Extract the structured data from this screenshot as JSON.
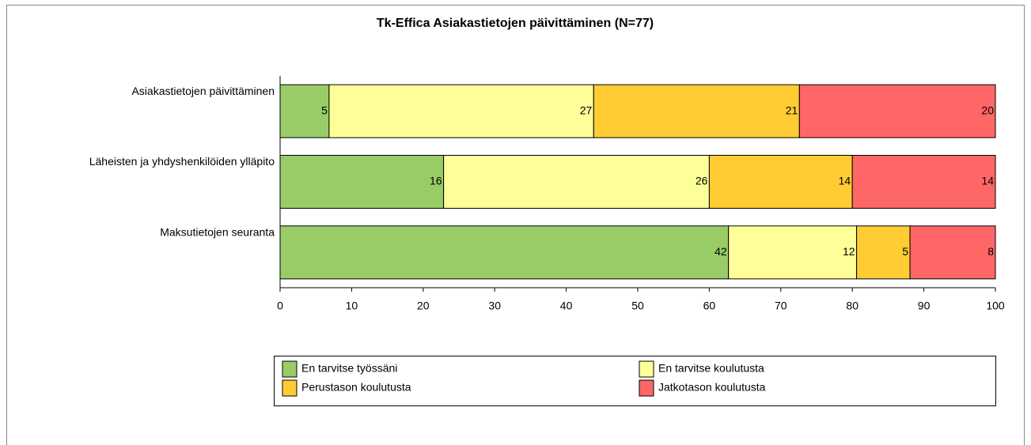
{
  "chart_data": {
    "type": "bar",
    "orientation": "horizontal",
    "stacking": "percent",
    "title": "Tk-Effica Asiakastietojen päivittäminen (N=77)",
    "categories": [
      "Asiakastietojen päivittäminen",
      "Läheisten ja yhdyshenkilöiden ylläpito",
      "Maksutietojen seuranta"
    ],
    "series": [
      {
        "name": "En tarvitse työssäni",
        "color": "#99cc66",
        "values": [
          5,
          16,
          42
        ]
      },
      {
        "name": "En tarvitse koulutusta",
        "color": "#ffff99",
        "values": [
          27,
          26,
          12
        ]
      },
      {
        "name": "Perustason koulutusta",
        "color": "#ffcc33",
        "values": [
          21,
          14,
          5
        ]
      },
      {
        "name": "Jatkotason koulutusta",
        "color": "#ff6666",
        "values": [
          20,
          14,
          8
        ]
      }
    ],
    "xlim": [
      0,
      100
    ],
    "xticks": [
      0,
      10,
      20,
      30,
      40,
      50,
      60,
      70,
      80,
      90,
      100
    ],
    "legend": "bottom"
  }
}
